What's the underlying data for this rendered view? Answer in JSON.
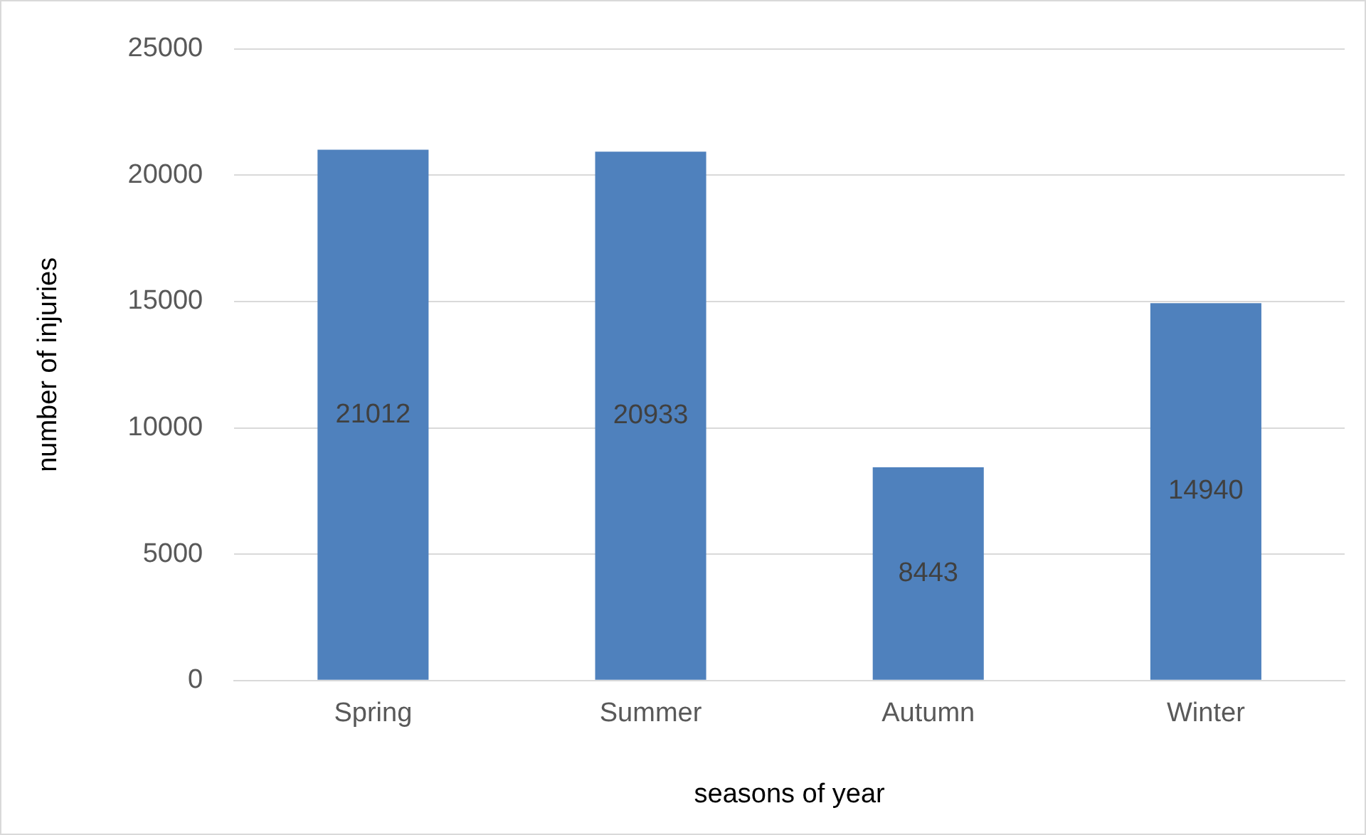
{
  "chart_data": {
    "type": "bar",
    "xlabel": "seasons of year",
    "ylabel": "number of injuries",
    "categories": [
      "Spring",
      "Summer",
      "Autumn",
      "Winter"
    ],
    "values": [
      21012,
      20933,
      8443,
      14940
    ],
    "color": "#4f81bd",
    "ylim": [
      0,
      25000
    ],
    "yticks": [
      0,
      5000,
      10000,
      15000,
      20000,
      25000
    ],
    "grid": "y",
    "data_labels": true,
    "legend": false
  }
}
